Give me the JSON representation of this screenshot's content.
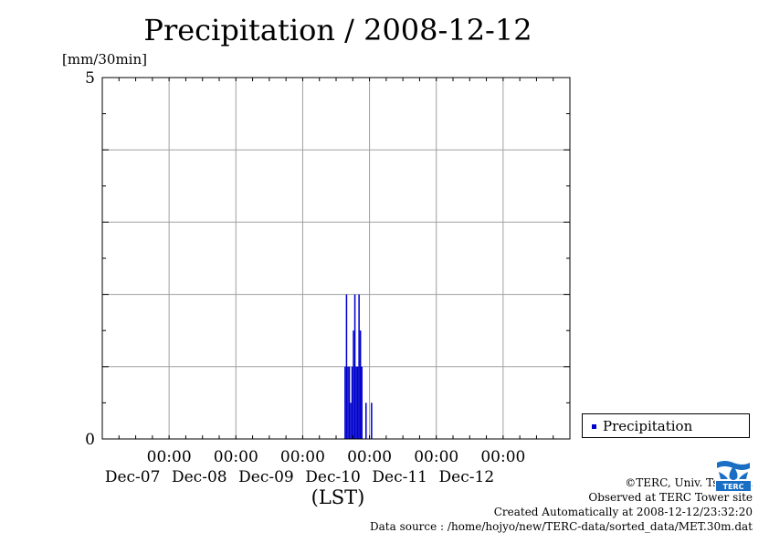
{
  "header": {
    "title": "Precipitation / 2008-12-12",
    "y_unit": "[mm/30min]"
  },
  "legend": {
    "label": "Precipitation",
    "color": "#0000cc"
  },
  "footer": {
    "x_axis_title": "(LST)",
    "copyright": "©TERC, Univ. Tsukuba",
    "observed": "Observed at TERC Tower site",
    "created": "Created Automatically at 2008-12-12/23:32:20",
    "source": "Data source : /home/hojyo/new/TERC-data/sorted_data/MET.30m.dat",
    "logo_text": "TERC"
  },
  "chart_data": {
    "type": "bar",
    "title": "Precipitation / 2008-12-12",
    "ylabel": "[mm/30min]",
    "xlabel": "(LST)",
    "ylim": [
      0,
      5
    ],
    "y_ticks": [
      {
        "value": 0,
        "label": "0"
      },
      {
        "value": 5,
        "label": "5"
      }
    ],
    "xlim": [
      "2008-12-06 00:00",
      "2008-12-13 00:00"
    ],
    "x_ticks": [
      {
        "time": "2008-12-07 00:00",
        "label_time": "00:00",
        "label_date": "Dec-07"
      },
      {
        "time": "2008-12-08 00:00",
        "label_time": "00:00",
        "label_date": "Dec-08"
      },
      {
        "time": "2008-12-09 00:00",
        "label_time": "00:00",
        "label_date": "Dec-09"
      },
      {
        "time": "2008-12-10 00:00",
        "label_time": "00:00",
        "label_date": "Dec-10"
      },
      {
        "time": "2008-12-11 00:00",
        "label_time": "00:00",
        "label_date": "Dec-11"
      },
      {
        "time": "2008-12-12 00:00",
        "label_time": "00:00",
        "label_date": "Dec-12"
      }
    ],
    "grid": true,
    "legend_position": "bottom-right",
    "series": [
      {
        "name": "Precipitation",
        "color": "#0000cc",
        "points": [
          {
            "t": "2008-12-09 15:00",
            "v": 1.0
          },
          {
            "t": "2008-12-09 15:30",
            "v": 2.0
          },
          {
            "t": "2008-12-09 16:00",
            "v": 1.0
          },
          {
            "t": "2008-12-09 16:30",
            "v": 1.0
          },
          {
            "t": "2008-12-09 17:00",
            "v": 0.5
          },
          {
            "t": "2008-12-09 17:30",
            "v": 1.0
          },
          {
            "t": "2008-12-09 18:00",
            "v": 1.5
          },
          {
            "t": "2008-12-09 18:30",
            "v": 2.0
          },
          {
            "t": "2008-12-09 19:00",
            "v": 1.0
          },
          {
            "t": "2008-12-09 19:30",
            "v": 1.0
          },
          {
            "t": "2008-12-09 20:00",
            "v": 2.0
          },
          {
            "t": "2008-12-09 20:30",
            "v": 1.5
          },
          {
            "t": "2008-12-09 21:00",
            "v": 1.0
          },
          {
            "t": "2008-12-09 22:30",
            "v": 0.5
          },
          {
            "t": "2008-12-10 00:30",
            "v": 0.5
          }
        ]
      }
    ]
  }
}
